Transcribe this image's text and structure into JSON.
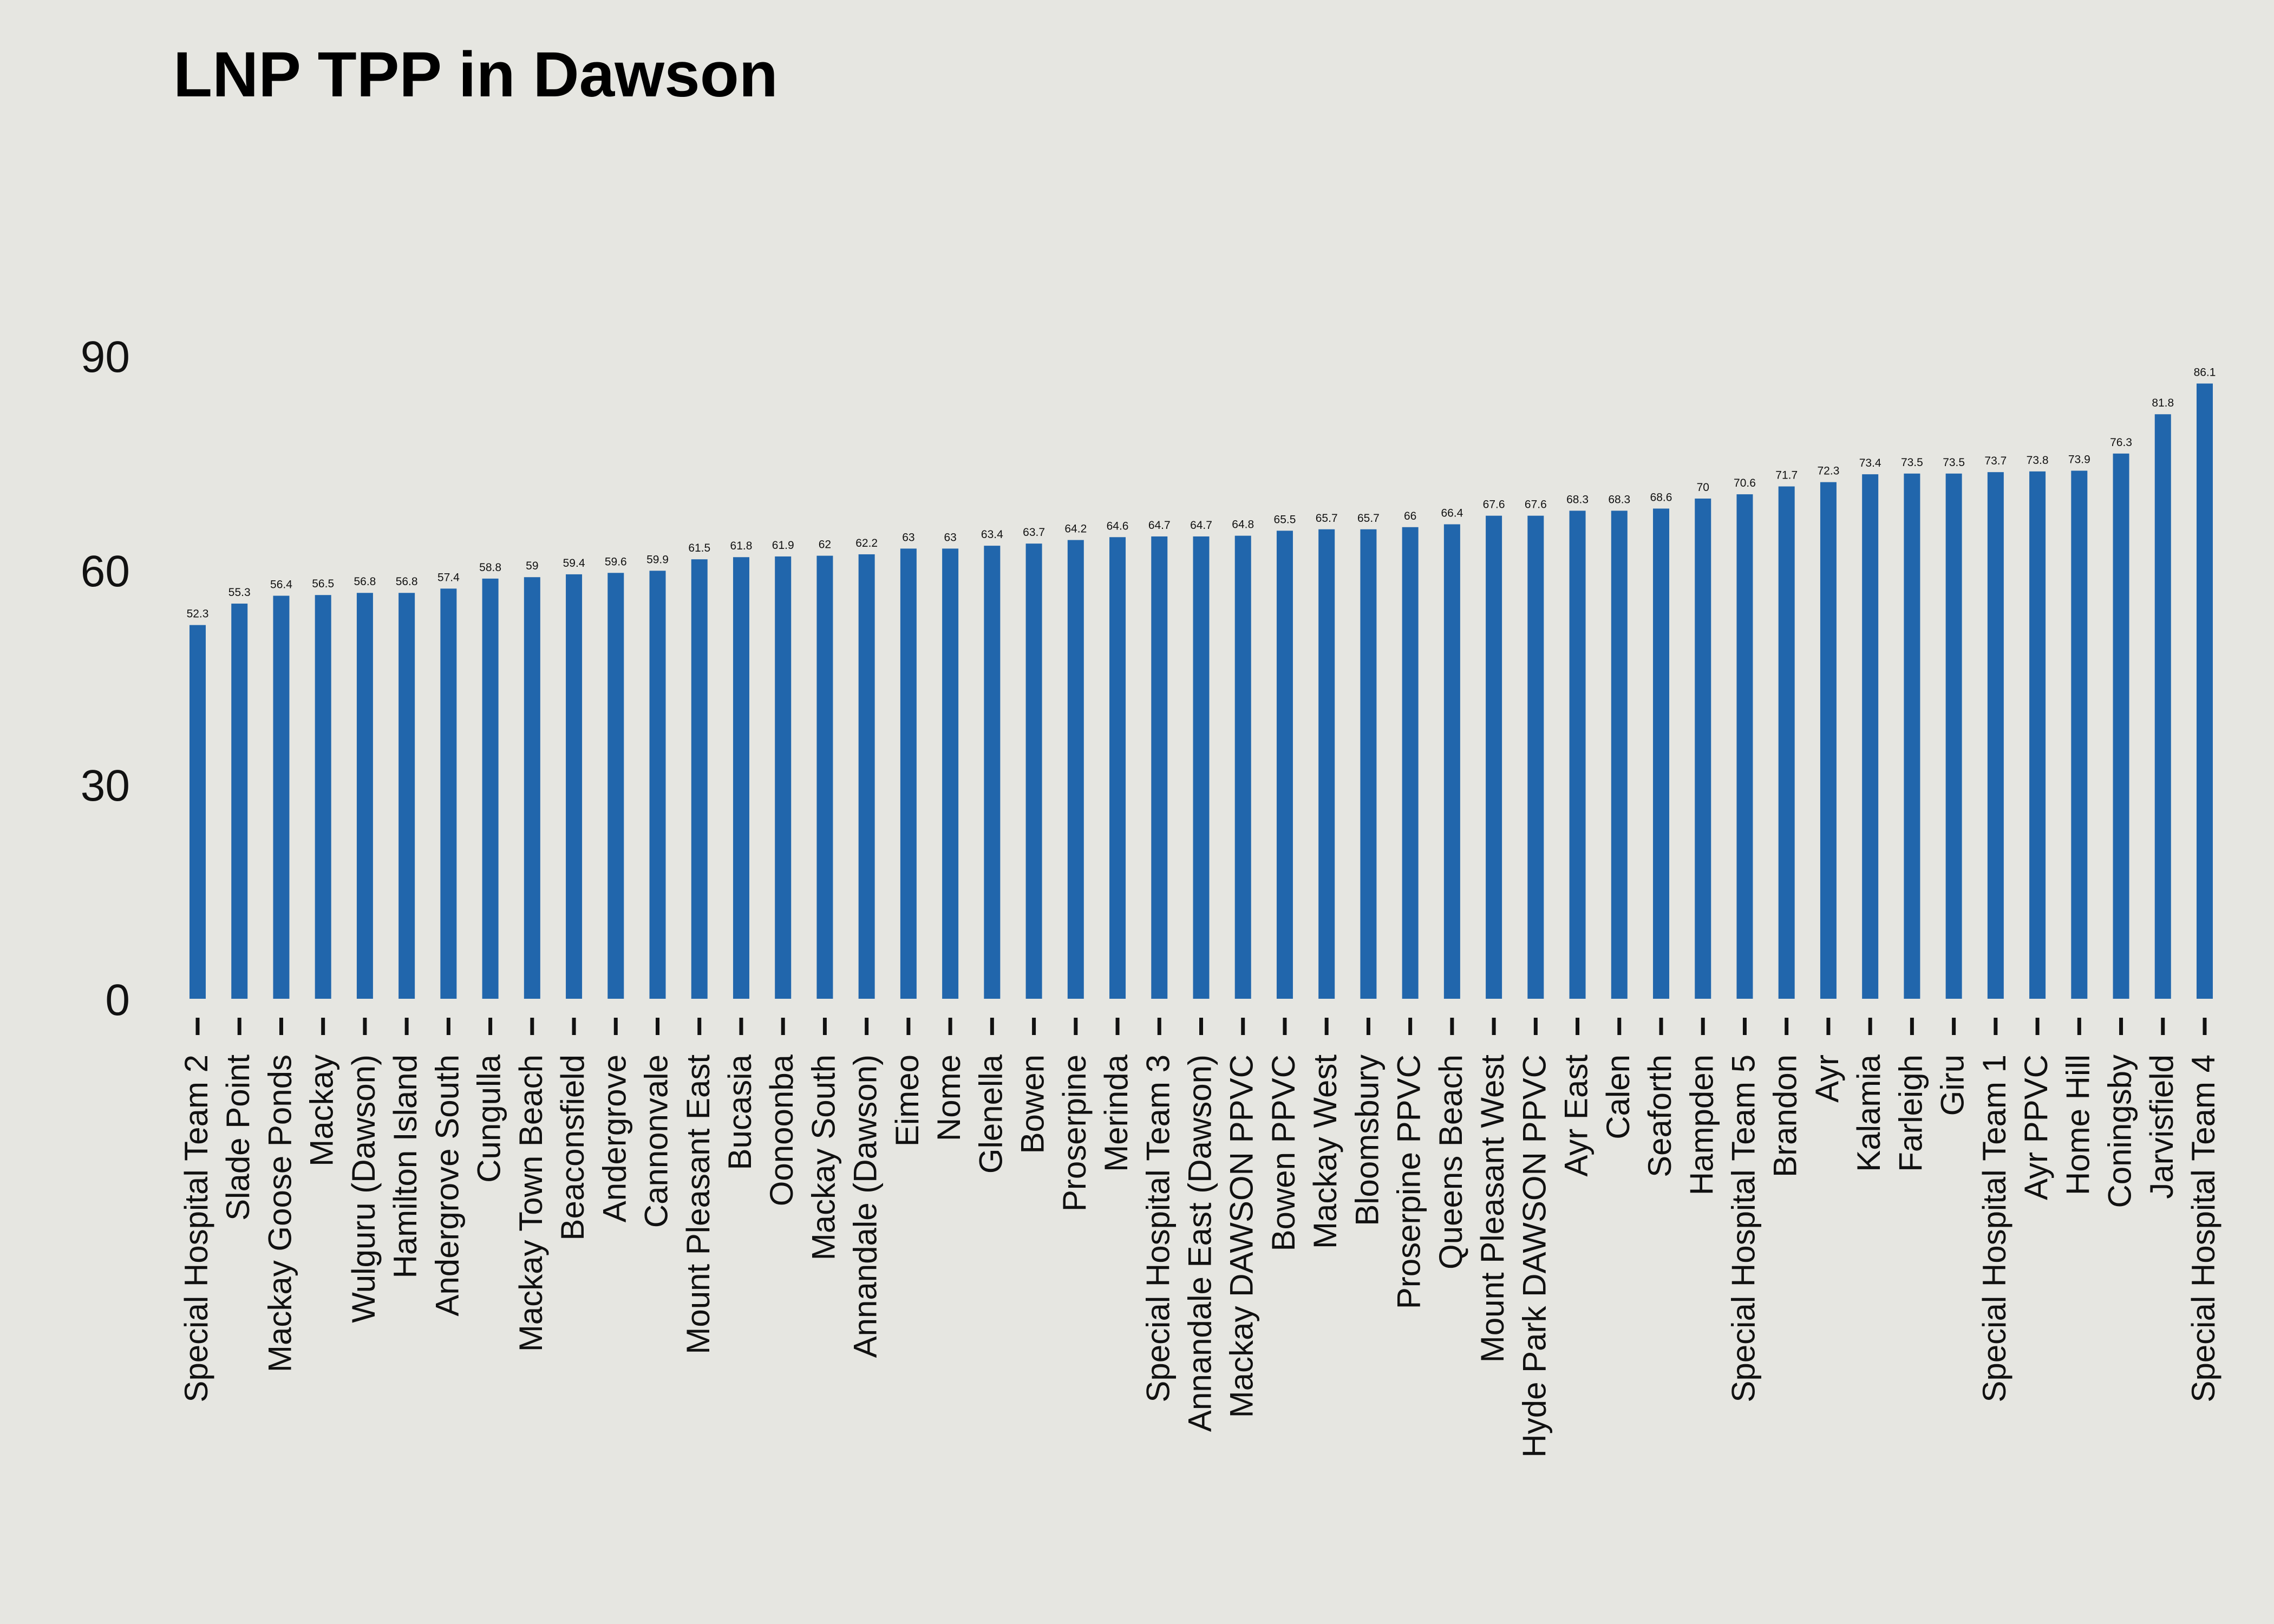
{
  "chart_data": {
    "type": "bar",
    "title": "LNP TPP in Dawson",
    "xlabel": "",
    "ylabel": "",
    "ylim": [
      0,
      90
    ],
    "yticks": [
      0,
      30,
      60,
      90
    ],
    "grid": false,
    "legend": "none",
    "bar_color": "#2166ac",
    "background": "#e6e6e1",
    "categories": [
      "Special Hospital Team 2",
      "Slade Point",
      "Mackay Goose Ponds",
      "Mackay",
      "Wulguru (Dawson)",
      "Hamilton Island",
      "Andergrove South",
      "Cungulla",
      "Mackay Town Beach",
      "Beaconsfield",
      "Andergrove",
      "Cannonvale",
      "Mount Pleasant East",
      "Bucasia",
      "Oonoonba",
      "Mackay South",
      "Annandale (Dawson)",
      "Eimeo",
      "Nome",
      "Glenella",
      "Bowen",
      "Proserpine",
      "Merinda",
      "Special Hospital Team 3",
      "Annandale East (Dawson)",
      "Mackay DAWSON PPVC",
      "Bowen PPVC",
      "Mackay West",
      "Bloomsbury",
      "Proserpine PPVC",
      "Queens Beach",
      "Mount Pleasant West",
      "Hyde Park DAWSON PPVC",
      "Ayr East",
      "Calen",
      "Seaforth",
      "Hampden",
      "Special Hospital Team 5",
      "Brandon",
      "Ayr",
      "Kalamia",
      "Farleigh",
      "Giru",
      "Special Hospital Team 1",
      "Ayr PPVC",
      "Home Hill",
      "Coningsby",
      "Jarvisfield",
      "Special Hospital Team 4"
    ],
    "values": [
      52.3,
      55.3,
      56.4,
      56.5,
      56.8,
      56.8,
      57.4,
      58.8,
      59,
      59.4,
      59.6,
      59.9,
      61.5,
      61.8,
      61.9,
      62,
      62.2,
      63,
      63,
      63.4,
      63.7,
      64.2,
      64.6,
      64.7,
      64.7,
      64.8,
      65.5,
      65.7,
      65.7,
      66,
      66.4,
      67.6,
      67.6,
      68.3,
      68.3,
      68.6,
      70,
      70.6,
      71.7,
      72.3,
      73.4,
      73.5,
      73.5,
      73.7,
      73.8,
      73.9,
      76.3,
      81.8,
      86.1
    ]
  }
}
